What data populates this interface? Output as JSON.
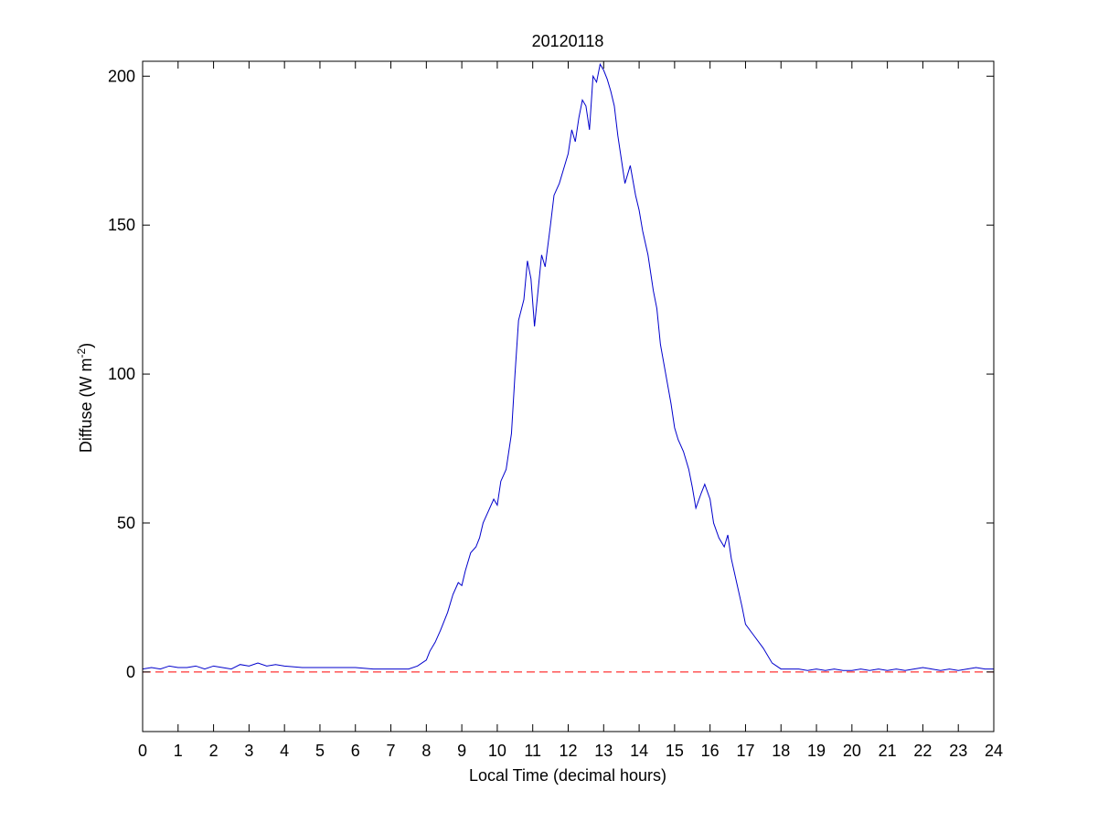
{
  "chart_data": {
    "type": "line",
    "title": "20120118",
    "xlabel": "Local Time (decimal hours)",
    "ylabel": {
      "main": "Diffuse (W m",
      "superscript": "-2",
      "close": ")"
    },
    "xlim": [
      0,
      24
    ],
    "ylim": [
      -20,
      205
    ],
    "x_ticks": [
      0,
      1,
      2,
      3,
      4,
      5,
      6,
      7,
      8,
      9,
      10,
      11,
      12,
      13,
      14,
      15,
      16,
      17,
      18,
      19,
      20,
      21,
      22,
      23,
      24
    ],
    "x_tick_labels": [
      "0",
      "1",
      "2",
      "3",
      "4",
      "5",
      "6",
      "7",
      "8",
      "9",
      "10",
      "11",
      "12",
      "13",
      "14",
      "15",
      "16",
      "17",
      "18",
      "19",
      "20",
      "21",
      "22",
      "23",
      "24"
    ],
    "y_ticks": [
      0,
      50,
      100,
      150,
      200
    ],
    "y_tick_labels": [
      "0",
      "50",
      "100",
      "150",
      "200"
    ],
    "grid": false,
    "legend": "none",
    "series": [
      {
        "style": "solid",
        "color": "#0000cc",
        "x": [
          0,
          0.25,
          0.5,
          0.75,
          1,
          1.25,
          1.5,
          1.75,
          2,
          2.25,
          2.5,
          2.75,
          3,
          3.25,
          3.5,
          3.75,
          4,
          4.5,
          5,
          5.5,
          6,
          6.5,
          7,
          7.25,
          7.5,
          7.75,
          8,
          8.1,
          8.25,
          8.4,
          8.5,
          8.6,
          8.75,
          8.9,
          9,
          9.1,
          9.25,
          9.4,
          9.5,
          9.6,
          9.75,
          9.9,
          10,
          10.1,
          10.25,
          10.4,
          10.5,
          10.6,
          10.75,
          10.85,
          10.95,
          11.05,
          11.15,
          11.25,
          11.35,
          11.5,
          11.6,
          11.75,
          11.9,
          12,
          12.1,
          12.2,
          12.3,
          12.4,
          12.5,
          12.6,
          12.7,
          12.8,
          12.9,
          13,
          13.1,
          13.2,
          13.3,
          13.4,
          13.5,
          13.6,
          13.75,
          13.9,
          14,
          14.1,
          14.25,
          14.4,
          14.5,
          14.6,
          14.75,
          14.9,
          15,
          15.1,
          15.25,
          15.4,
          15.5,
          15.6,
          15.75,
          15.85,
          16,
          16.1,
          16.25,
          16.4,
          16.5,
          16.6,
          16.75,
          16.9,
          17,
          17.25,
          17.5,
          17.75,
          18,
          18.25,
          18.5,
          18.75,
          19,
          19.25,
          19.5,
          19.75,
          20,
          20.25,
          20.5,
          20.75,
          21,
          21.25,
          21.5,
          21.75,
          22,
          22.25,
          22.5,
          22.75,
          23,
          23.25,
          23.5,
          23.75,
          24
        ],
        "values": [
          1,
          1.5,
          1,
          2,
          1.5,
          1.5,
          2,
          1,
          2,
          1.5,
          1,
          2.5,
          2,
          3,
          2,
          2.5,
          2,
          1.5,
          1.5,
          1.5,
          1.5,
          1,
          1,
          1,
          1,
          2,
          4,
          7,
          10,
          14,
          17,
          20,
          26,
          30,
          29,
          34,
          40,
          42,
          45,
          50,
          54,
          58,
          56,
          64,
          68,
          80,
          100,
          118,
          125,
          138,
          132,
          116,
          128,
          140,
          136,
          150,
          160,
          164,
          170,
          174,
          182,
          178,
          186,
          192,
          190,
          182,
          200,
          198,
          204,
          202,
          199,
          195,
          190,
          180,
          172,
          164,
          170,
          160,
          155,
          148,
          140,
          128,
          122,
          110,
          100,
          90,
          82,
          78,
          74,
          68,
          62,
          55,
          60,
          63,
          58,
          50,
          45,
          42,
          46,
          38,
          30,
          22,
          16,
          12,
          8,
          3,
          1,
          1,
          1,
          0.5,
          1,
          0.5,
          1,
          0.5,
          0.5,
          1,
          0.5,
          1,
          0.5,
          1,
          0.5,
          1,
          1.5,
          1,
          0.5,
          1,
          0.5,
          1,
          1.5,
          1,
          1
        ]
      },
      {
        "style": "dashed",
        "color": "#ff0000",
        "x": [
          0,
          24
        ],
        "values": [
          0,
          0
        ]
      }
    ]
  }
}
